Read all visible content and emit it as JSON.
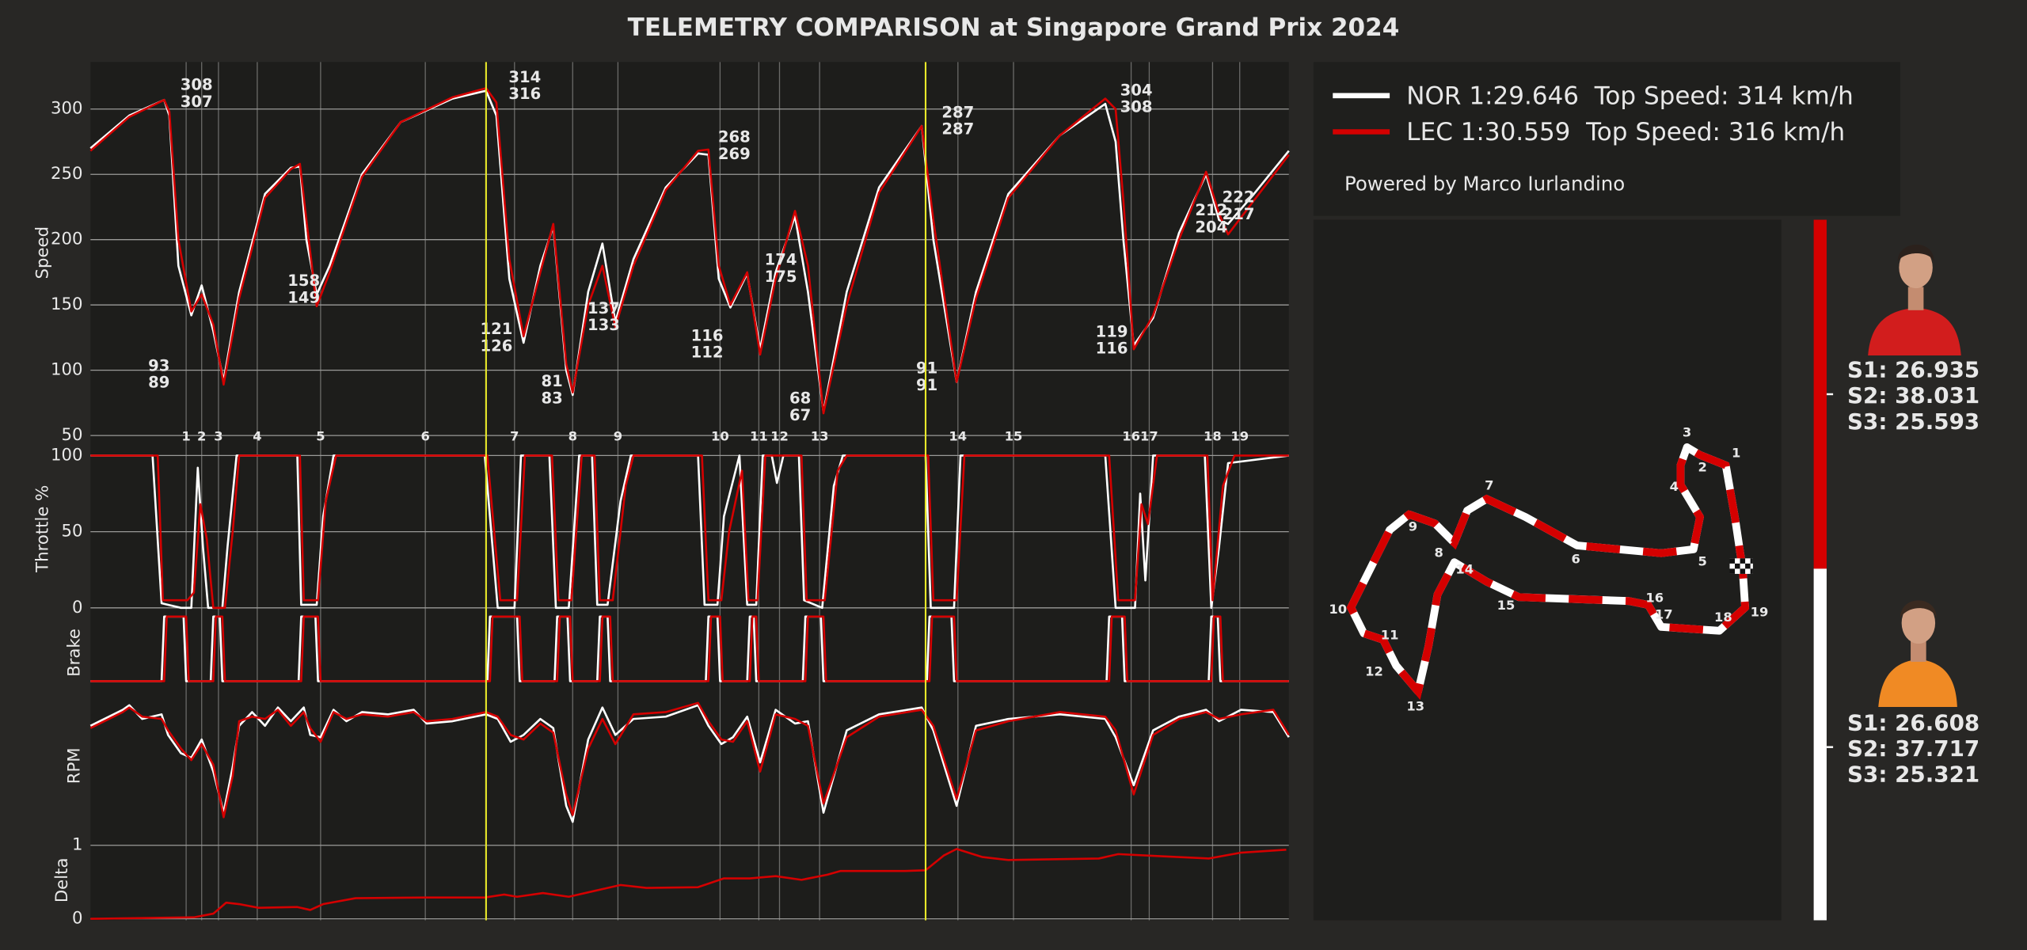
{
  "title": "TELEMETRY COMPARISON at Singapore Grand Prix 2024",
  "credit": "Powered by Marco Iurlandino",
  "sector_times": {
    "LEC": [
      "S1: 26.935",
      "S2: 38.031",
      "S3: 25.593"
    ],
    "NOR": [
      "S1: 26.608",
      "S2: 37.717",
      "S3: 25.321"
    ]
  },
  "chart_data": [
    {
      "type": "line",
      "ylabel": "Speed",
      "ylim": [
        44,
        336
      ],
      "yticks": [
        50,
        100,
        150,
        200,
        250,
        300
      ],
      "xlim": [
        0,
        927
      ],
      "grid": true,
      "x": [
        0,
        30,
        57,
        61,
        68,
        78,
        86,
        95,
        103,
        115,
        135,
        155,
        162,
        167,
        175,
        185,
        210,
        240,
        280,
        306,
        314,
        324,
        335,
        348,
        358,
        368,
        373,
        385,
        396,
        406,
        420,
        445,
        470,
        478,
        486,
        495,
        508,
        518,
        530,
        545,
        555,
        567,
        585,
        610,
        643,
        652,
        670,
        685,
        710,
        750,
        785,
        793,
        799,
        807,
        822,
        842,
        863,
        873,
        880,
        900,
        927
      ],
      "series": [
        {
          "name": "NOR 1:29.646  Top Speed: 314 km/h",
          "color": "#ffffff",
          "values": [
            270,
            295,
            307,
            295,
            180,
            142,
            165,
            130,
            92,
            160,
            235,
            255,
            256,
            200,
            158,
            180,
            250,
            290,
            308,
            314,
            295,
            170,
            121,
            180,
            210,
            100,
            81,
            160,
            197,
            137,
            185,
            240,
            266,
            265,
            170,
            148,
            174,
            116,
            175,
            218,
            160,
            68,
            160,
            240,
            287,
            200,
            91,
            160,
            235,
            280,
            304,
            275,
            200,
            119,
            140,
            205,
            250,
            215,
            212,
            235,
            268
          ]
        },
        {
          "name": "LEC 1:30.559  Top Speed: 316 km/h",
          "color": "#d40000",
          "values": [
            268,
            294,
            307,
            298,
            200,
            145,
            158,
            135,
            89,
            155,
            232,
            254,
            258,
            215,
            149,
            175,
            248,
            290,
            309,
            316,
            305,
            185,
            126,
            175,
            212,
            105,
            83,
            150,
            180,
            133,
            180,
            238,
            268,
            269,
            180,
            150,
            175,
            112,
            170,
            222,
            180,
            67,
            150,
            236,
            287,
            215,
            91,
            155,
            232,
            280,
            308,
            300,
            230,
            116,
            142,
            200,
            252,
            220,
            204,
            230,
            265
          ]
        }
      ],
      "annotations": [
        {
          "x": 53,
          "values": [
            93,
            89
          ]
        },
        {
          "x": 82,
          "values": [
            308,
            307
          ]
        },
        {
          "x": 165,
          "values": [
            158,
            149
          ]
        },
        {
          "x": 314,
          "values": [
            121,
            126
          ]
        },
        {
          "x": 336,
          "values": [
            314,
            316
          ]
        },
        {
          "x": 357,
          "values": [
            81,
            83
          ]
        },
        {
          "x": 397,
          "values": [
            137,
            133
          ]
        },
        {
          "x": 477,
          "values": [
            116,
            112
          ]
        },
        {
          "x": 498,
          "values": [
            268,
            269
          ]
        },
        {
          "x": 534,
          "values": [
            174,
            175
          ]
        },
        {
          "x": 549,
          "values": [
            68,
            67
          ]
        },
        {
          "x": 647,
          "values": [
            91,
            91
          ]
        },
        {
          "x": 671,
          "values": [
            287,
            287
          ]
        },
        {
          "x": 790,
          "values": [
            119,
            116
          ]
        },
        {
          "x": 809,
          "values": [
            304,
            308
          ]
        },
        {
          "x": 867,
          "values": [
            212,
            204
          ]
        },
        {
          "x": 888,
          "values": [
            222,
            217
          ]
        }
      ],
      "corners": {
        "labels": [
          1,
          2,
          3,
          4,
          5,
          6,
          7,
          8,
          9,
          10,
          11,
          12,
          13,
          14,
          15,
          16,
          17,
          18,
          19
        ],
        "x": [
          74,
          86,
          99,
          129,
          178,
          259,
          328,
          373,
          408,
          487,
          517,
          533,
          564,
          671,
          714,
          805,
          819,
          868,
          889
        ]
      },
      "sector_lines": [
        306,
        646
      ]
    },
    {
      "type": "line",
      "ylabel": "Throttle %",
      "ylim": [
        -4,
        108
      ],
      "yticks": [
        0,
        50,
        100
      ],
      "xlim": [
        0,
        927
      ],
      "grid": true,
      "series": [
        {
          "color": "#ffffff",
          "x": [
            0,
            48,
            55,
            70,
            78,
            83,
            87,
            91,
            102,
            106,
            113,
            160,
            163,
            175,
            180,
            188,
            305,
            315,
            328,
            333,
            355,
            360,
            370,
            378,
            388,
            392,
            400,
            410,
            418,
            470,
            475,
            485,
            490,
            502,
            508,
            515,
            520,
            527,
            531,
            536,
            548,
            552,
            566,
            575,
            582,
            646,
            650,
            668,
            673,
            785,
            793,
            808,
            812,
            816,
            822,
            862,
            867,
            873,
            880,
            927
          ],
          "values": [
            100,
            100,
            3,
            0,
            0,
            92,
            40,
            0,
            0,
            40,
            100,
            100,
            2,
            2,
            60,
            100,
            100,
            0,
            0,
            100,
            100,
            0,
            0,
            100,
            100,
            2,
            2,
            70,
            100,
            100,
            2,
            2,
            60,
            100,
            2,
            2,
            100,
            100,
            82,
            100,
            100,
            5,
            0,
            80,
            100,
            100,
            0,
            0,
            100,
            100,
            0,
            0,
            75,
            18,
            100,
            100,
            0,
            40,
            95,
            100
          ]
        },
        {
          "color": "#d40000",
          "x": [
            0,
            52,
            56,
            75,
            80,
            85,
            90,
            95,
            104,
            110,
            115,
            162,
            165,
            176,
            182,
            190,
            307,
            317,
            330,
            336,
            357,
            362,
            372,
            380,
            390,
            394,
            404,
            414,
            420,
            473,
            478,
            488,
            494,
            504,
            509,
            516,
            522,
            550,
            554,
            568,
            578,
            585,
            648,
            652,
            670,
            676,
            788,
            795,
            808,
            813,
            818,
            825,
            864,
            868,
            876,
            885,
            927
          ],
          "values": [
            100,
            100,
            5,
            5,
            10,
            68,
            45,
            0,
            0,
            50,
            100,
            100,
            5,
            5,
            70,
            100,
            100,
            5,
            5,
            100,
            100,
            5,
            5,
            100,
            100,
            5,
            5,
            80,
            100,
            100,
            5,
            5,
            50,
            90,
            5,
            5,
            100,
            100,
            5,
            5,
            90,
            100,
            100,
            5,
            5,
            100,
            100,
            5,
            5,
            68,
            55,
            100,
            100,
            5,
            80,
            100,
            100
          ]
        }
      ]
    },
    {
      "type": "line",
      "ylabel": "Brake",
      "ylim": [
        -0.16,
        1.04
      ],
      "xlim": [
        0,
        927
      ],
      "series": [
        {
          "color": "#ffffff",
          "x": [
            0,
            55,
            57,
            72,
            74,
            93,
            95,
            100,
            102,
            161,
            163,
            174,
            176,
            307,
            309,
            330,
            332,
            359,
            361,
            369,
            371,
            392,
            394,
            400,
            402,
            476,
            478,
            485,
            487,
            508,
            510,
            513,
            515,
            551,
            553,
            565,
            567,
            647,
            649,
            666,
            668,
            786,
            788,
            798,
            800,
            865,
            867,
            872,
            874,
            927
          ],
          "values": [
            0,
            0,
            1,
            1,
            0,
            0,
            1,
            1,
            0,
            0,
            1,
            1,
            0,
            0,
            1,
            1,
            0,
            0,
            1,
            1,
            0,
            0,
            1,
            1,
            0,
            0,
            1,
            1,
            0,
            0,
            1,
            1,
            0,
            0,
            1,
            1,
            0,
            0,
            1,
            1,
            0,
            0,
            1,
            1,
            0,
            0,
            1,
            1,
            0,
            0
          ]
        },
        {
          "color": "#d40000",
          "x": [
            0,
            57,
            59,
            74,
            76,
            95,
            97,
            102,
            104,
            163,
            165,
            176,
            178,
            309,
            311,
            332,
            334,
            361,
            363,
            371,
            373,
            394,
            396,
            402,
            404,
            478,
            480,
            487,
            489,
            510,
            512,
            515,
            517,
            553,
            555,
            567,
            569,
            649,
            651,
            668,
            670,
            788,
            790,
            800,
            802,
            867,
            869,
            874,
            876,
            927
          ],
          "values": [
            0,
            0,
            1,
            1,
            0,
            0,
            1,
            1,
            0,
            0,
            1,
            1,
            0,
            0,
            1,
            1,
            0,
            0,
            1,
            1,
            0,
            0,
            1,
            1,
            0,
            0,
            1,
            1,
            0,
            0,
            1,
            1,
            0,
            0,
            1,
            1,
            0,
            0,
            1,
            1,
            0,
            0,
            1,
            1,
            0,
            0,
            1,
            1,
            0,
            0
          ]
        }
      ]
    },
    {
      "type": "line",
      "ylabel": "RPM",
      "ylim": [
        6000,
        12500
      ],
      "xlim": [
        0,
        927
      ],
      "x": [
        0,
        25,
        30,
        40,
        55,
        60,
        70,
        78,
        86,
        95,
        103,
        110,
        115,
        125,
        135,
        145,
        155,
        165,
        170,
        178,
        188,
        198,
        210,
        230,
        250,
        260,
        280,
        306,
        315,
        325,
        335,
        348,
        358,
        368,
        373,
        385,
        396,
        406,
        420,
        445,
        470,
        478,
        488,
        497,
        508,
        518,
        530,
        545,
        555,
        567,
        585,
        610,
        643,
        652,
        670,
        685,
        710,
        750,
        785,
        793,
        807,
        822,
        842,
        863,
        873,
        890,
        915,
        927
      ],
      "series": [
        {
          "color": "#ffffff",
          "values": [
            11000,
            11700,
            11900,
            11300,
            11500,
            10600,
            9800,
            9600,
            10400,
            9000,
            7200,
            9200,
            11000,
            11600,
            11000,
            11800,
            11200,
            11800,
            10600,
            10500,
            11700,
            11200,
            11600,
            11500,
            11700,
            11100,
            11200,
            11500,
            11300,
            10300,
            10600,
            11300,
            10900,
            7500,
            6800,
            10400,
            11800,
            10600,
            11300,
            11400,
            11900,
            11000,
            10200,
            10500,
            11400,
            9400,
            11700,
            11100,
            11200,
            7200,
            10800,
            11500,
            11800,
            10800,
            7500,
            11000,
            11300,
            11500,
            11300,
            10500,
            8400,
            10800,
            11400,
            11700,
            11200,
            11700,
            11600,
            10500
          ]
        },
        {
          "color": "#d40000",
          "values": [
            10900,
            11600,
            11800,
            11400,
            11300,
            10800,
            10000,
            9500,
            10200,
            9300,
            7000,
            8800,
            11200,
            11400,
            11300,
            11700,
            11000,
            11600,
            10900,
            10300,
            11600,
            11300,
            11500,
            11400,
            11600,
            11200,
            11300,
            11600,
            11400,
            10600,
            10400,
            11100,
            10700,
            8000,
            7100,
            10000,
            11300,
            10200,
            11500,
            11600,
            12000,
            11200,
            10400,
            10300,
            11200,
            9000,
            11500,
            11300,
            11000,
            7600,
            10500,
            11400,
            11700,
            11000,
            7800,
            10800,
            11200,
            11600,
            11400,
            10800,
            8000,
            10600,
            11300,
            11600,
            11300,
            11500,
            11700,
            10600
          ]
        }
      ]
    },
    {
      "type": "line",
      "ylabel": "Delta",
      "ylim": [
        -0.02,
        1.07
      ],
      "yticks": [
        0,
        1
      ],
      "xlim": [
        0,
        927
      ],
      "grid": true,
      "x": [
        0,
        80,
        95,
        105,
        115,
        130,
        160,
        170,
        180,
        205,
        260,
        305,
        320,
        330,
        350,
        370,
        390,
        410,
        430,
        470,
        490,
        510,
        530,
        550,
        570,
        580,
        630,
        646,
        660,
        670,
        690,
        710,
        780,
        795,
        830,
        865,
        890,
        925
      ],
      "series": [
        {
          "color": "#d40000",
          "values": [
            0,
            0.02,
            0.07,
            0.22,
            0.2,
            0.15,
            0.16,
            0.12,
            0.2,
            0.28,
            0.29,
            0.29,
            0.33,
            0.3,
            0.35,
            0.3,
            0.38,
            0.46,
            0.42,
            0.43,
            0.55,
            0.55,
            0.58,
            0.53,
            0.6,
            0.65,
            0.65,
            0.66,
            0.86,
            0.95,
            0.84,
            0.8,
            0.82,
            0.88,
            0.85,
            0.82,
            0.9,
            0.94
          ]
        }
      ]
    }
  ]
}
